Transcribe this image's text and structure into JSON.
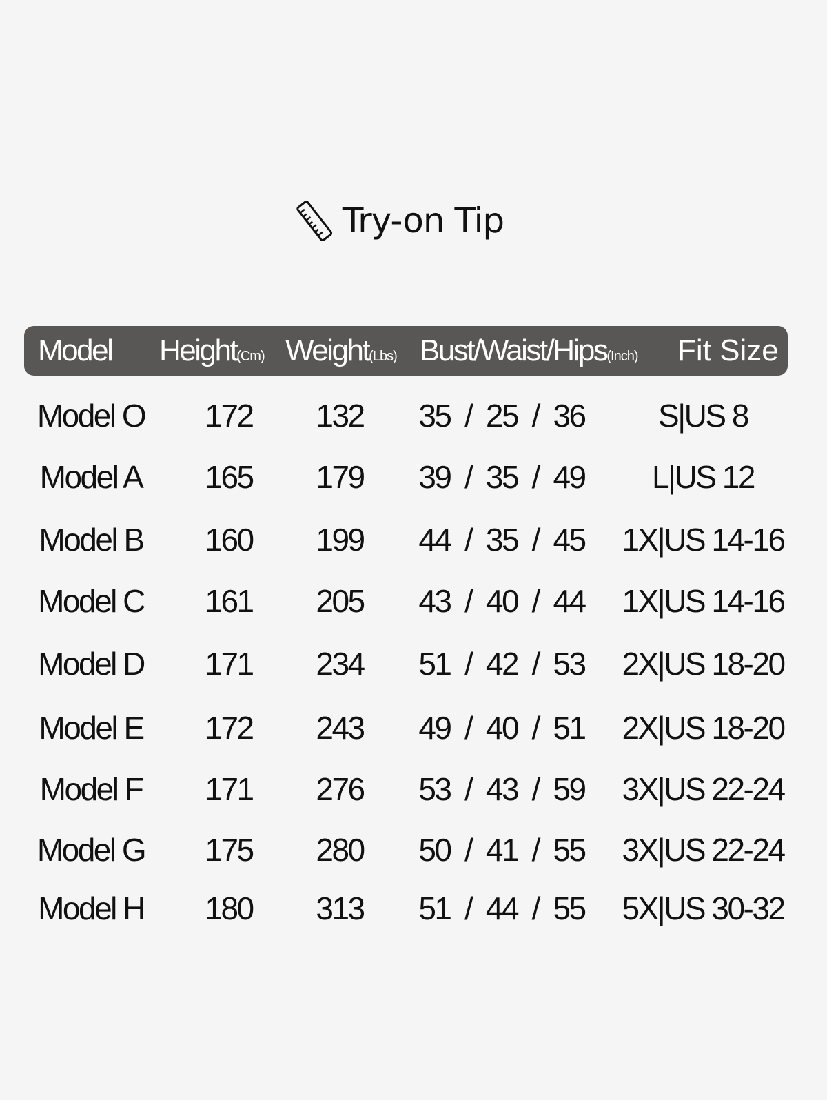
{
  "title": {
    "icon": "ruler-icon",
    "text": "Try-on Tip"
  },
  "colors": {
    "header_bg": "#585756",
    "background": "#f5f5f5"
  },
  "table": {
    "headers": [
      {
        "label": "Model",
        "unit": ""
      },
      {
        "label": "Height",
        "unit": "(Cm)"
      },
      {
        "label": "Weight",
        "unit": "(Lbs)"
      },
      {
        "label": "Bust/Waist/Hips",
        "unit": "(Inch)"
      },
      {
        "label": "Fit Size",
        "unit": ""
      }
    ],
    "rows": [
      [
        "Model O",
        "172",
        "132",
        "35  /  25  /  36",
        "S|US 8"
      ],
      [
        "Model A",
        "165",
        "179",
        "39  /  35  /  49",
        "L|US 12"
      ],
      [
        "Model B",
        "160",
        "199",
        "44  /  35  /  45",
        "1X|US 14-16"
      ],
      [
        "Model C",
        "161",
        "205",
        "43  /  40  /  44",
        "1X|US 14-16"
      ],
      [
        "Model D",
        "171",
        "234",
        "51  /  42  /  53",
        "2X|US 18-20"
      ],
      [
        "Model E",
        "172",
        "243",
        "49  /  40  /  51",
        "2X|US 18-20"
      ],
      [
        "Model F",
        "171",
        "276",
        "53  /  43  /  59",
        "3X|US 22-24"
      ],
      [
        "Model G",
        "175",
        "280",
        "50  /  41  /  55",
        "3X|US 22-24"
      ],
      [
        "Model H",
        "180",
        "313",
        "51  /  44  /  55",
        "5X|US 30-32"
      ]
    ]
  }
}
